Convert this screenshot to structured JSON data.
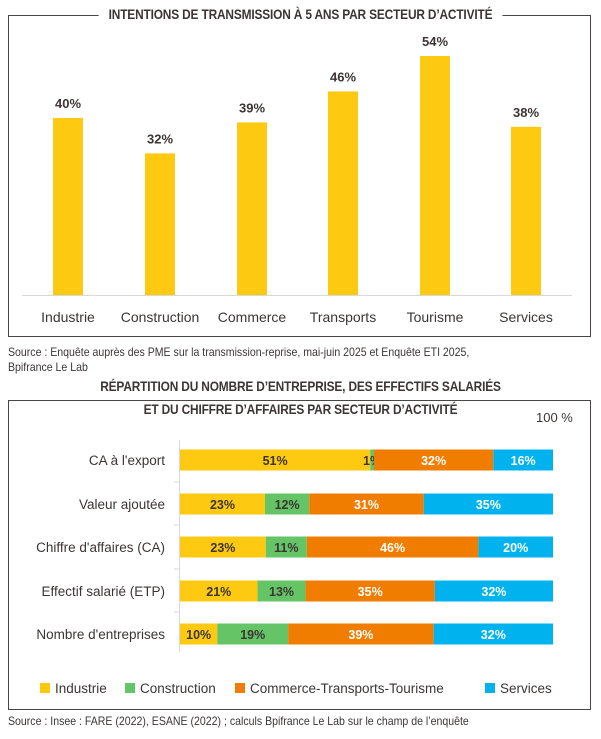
{
  "chart_data": [
    {
      "type": "bar",
      "title": "INTENTIONS DE TRANSMISSION À 5 ANS PAR SECTEUR D’ACTIVITÉ",
      "categories": [
        "Industrie",
        "Construction",
        "Commerce",
        "Transports",
        "Tourisme",
        "Services"
      ],
      "values": [
        40,
        32,
        39,
        46,
        54,
        38
      ],
      "value_labels": [
        "40%",
        "32%",
        "39%",
        "46%",
        "54%",
        "38%"
      ],
      "ylim": [
        0,
        60
      ],
      "grid": false,
      "color": "#FDC911",
      "source": "Source : Enquête auprès des PME sur la transmission-reprise, mai-juin 2025 et Enquête ETI 2025,",
      "source_line2": "Bpifrance Le Lab"
    },
    {
      "type": "bar",
      "stacked": true,
      "orientation": "horizontal",
      "title_line1": "RÉPARTITION DU NOMBRE D’ENTREPRISE, DES EFFECTIFS SALARIÉS",
      "title_line2": "ET DU CHIFFRE D’AFFAIRES PAR SECTEUR D’ACTIVITÉ",
      "axis_max_label": "100 %",
      "categories": [
        "CA à l'export",
        "Valeur ajoutée",
        "Chiffre d'affaires (CA)",
        "Effectif salarié (ETP)",
        "Nombre d'entreprises"
      ],
      "series": [
        {
          "name": "Industrie",
          "color": "#FDC911",
          "values": [
            51,
            23,
            23,
            21,
            10
          ]
        },
        {
          "name": "Construction",
          "color": "#65C466",
          "values": [
            1,
            12,
            11,
            13,
            19
          ]
        },
        {
          "name": "Commerce-Transports-Tourisme",
          "color": "#F07C00",
          "values": [
            32,
            31,
            46,
            35,
            39
          ]
        },
        {
          "name": "Services",
          "color": "#00B3EF",
          "values": [
            16,
            35,
            20,
            32,
            32
          ]
        }
      ],
      "legend": "bottom",
      "source": "Source : Insee : FARE (2022), ESANE (2022) ; calculs Bpifrance Le Lab sur le champ de l’enquête"
    }
  ]
}
